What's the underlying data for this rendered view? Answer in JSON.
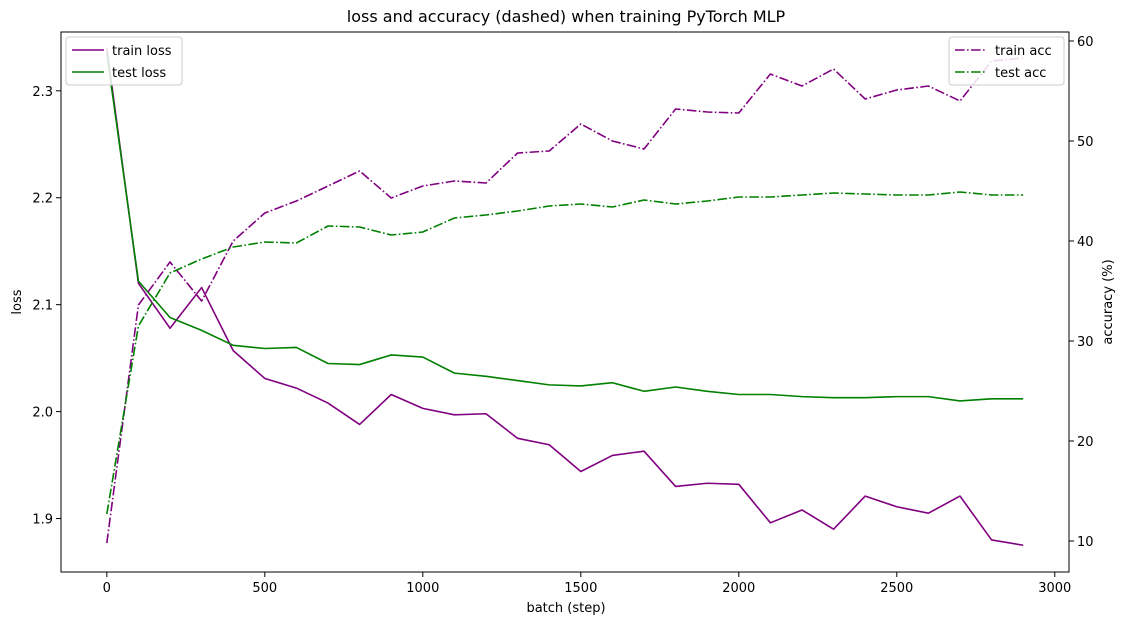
{
  "chart_data": {
    "type": "line",
    "title": "loss and accuracy (dashed) when training PyTorch MLP",
    "xlabel": "batch (step)",
    "ylabel_left": "loss",
    "ylabel_right": "accuracy (%)",
    "xlim": [
      -145,
      3045
    ],
    "ylim_left": [
      1.85,
      2.355
    ],
    "ylim_right": [
      6.9,
      60.9
    ],
    "x_ticks": [
      0,
      500,
      1000,
      1500,
      2000,
      2500,
      3000
    ],
    "x_tick_labels": [
      "0",
      "500",
      "1000",
      "1500",
      "2000",
      "2500",
      "3000"
    ],
    "y_left_ticks": [
      1.9,
      2.0,
      2.1,
      2.2,
      2.3
    ],
    "y_left_tick_labels": [
      "1.9",
      "2.0",
      "2.1",
      "2.2",
      "2.3"
    ],
    "y_right_ticks": [
      10,
      20,
      30,
      40,
      50,
      60
    ],
    "y_right_tick_labels": [
      "10",
      "20",
      "30",
      "40",
      "50",
      "60"
    ],
    "grid": false,
    "x": [
      0,
      100,
      200,
      300,
      400,
      500,
      600,
      700,
      800,
      900,
      1000,
      1100,
      1200,
      1300,
      1400,
      1500,
      1600,
      1700,
      1800,
      1900,
      2000,
      2100,
      2200,
      2300,
      2400,
      2500,
      2600,
      2700,
      2800,
      2900
    ],
    "series": [
      {
        "name": "train loss",
        "axis": "left",
        "style": "solid",
        "color": "#800080",
        "values": [
          2.34,
          2.12,
          2.078,
          2.116,
          2.057,
          2.031,
          2.022,
          2.008,
          1.988,
          2.016,
          2.003,
          1.997,
          1.998,
          1.975,
          1.969,
          1.944,
          1.959,
          1.963,
          1.93,
          1.933,
          1.932,
          1.896,
          1.908,
          1.89,
          1.921,
          1.911,
          1.905,
          1.921,
          1.88,
          1.875
        ]
      },
      {
        "name": "test loss",
        "axis": "left",
        "style": "solid",
        "color": "#008000",
        "values": [
          2.335,
          2.122,
          2.088,
          2.076,
          2.062,
          2.059,
          2.06,
          2.045,
          2.044,
          2.053,
          2.051,
          2.036,
          2.033,
          2.029,
          2.025,
          2.024,
          2.027,
          2.019,
          2.023,
          2.019,
          2.016,
          2.016,
          2.014,
          2.013,
          2.013,
          2.014,
          2.014,
          2.01,
          2.012,
          2.012
        ]
      },
      {
        "name": "train acc",
        "axis": "right",
        "style": "dashdot",
        "color": "#800080",
        "values": [
          9.8,
          33.6,
          37.9,
          34.0,
          40.0,
          42.8,
          44.0,
          45.5,
          47.0,
          44.3,
          45.5,
          46.0,
          45.8,
          48.8,
          49.0,
          51.7,
          50.0,
          49.2,
          53.2,
          52.9,
          52.8,
          56.7,
          55.5,
          57.2,
          54.2,
          55.1,
          55.5,
          54.0,
          58.0,
          58.3
        ]
      },
      {
        "name": "test acc",
        "axis": "right",
        "style": "dashdot",
        "color": "#008000",
        "values": [
          12.7,
          31.5,
          36.8,
          38.2,
          39.4,
          39.9,
          39.8,
          41.5,
          41.4,
          40.6,
          40.9,
          42.3,
          42.6,
          43.0,
          43.5,
          43.7,
          43.4,
          44.1,
          43.7,
          44.0,
          44.4,
          44.4,
          44.6,
          44.8,
          44.7,
          44.6,
          44.6,
          44.9,
          44.6,
          44.6
        ]
      }
    ],
    "legends": [
      {
        "placement": "upper-left",
        "entries": [
          "train loss",
          "test loss"
        ]
      },
      {
        "placement": "upper-right",
        "entries": [
          "train acc",
          "test acc"
        ]
      }
    ]
  }
}
